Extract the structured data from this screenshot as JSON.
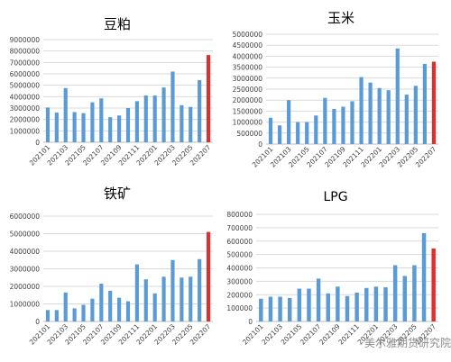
{
  "watermark": "美尔雅期货研究院",
  "colors": {
    "normal_bar": "#5B9BD5",
    "highlight_bar": "#E52D2D",
    "grid": "#d9d9d9",
    "axis": "#bfbfbf",
    "text": "#404040"
  },
  "chart_data": [
    {
      "type": "bar",
      "title": "豆粕",
      "categories": [
        "202101",
        "202102",
        "202103",
        "202104",
        "202105",
        "202106",
        "202107",
        "202108",
        "202109",
        "202110",
        "202111",
        "202112",
        "202201",
        "202202",
        "202203",
        "202204",
        "202205",
        "202206",
        "202207"
      ],
      "x_tick_labels": [
        "202101",
        "202103",
        "202105",
        "202107",
        "202109",
        "202111",
        "202201",
        "202203",
        "202205",
        "202207"
      ],
      "values": [
        3050000,
        2600000,
        4750000,
        2650000,
        2550000,
        3500000,
        3850000,
        2200000,
        2350000,
        3000000,
        3600000,
        4100000,
        4100000,
        4800000,
        6200000,
        3250000,
        3100000,
        5450000,
        7650000
      ],
      "highlight_index": 18,
      "ylim": [
        0,
        9000000
      ],
      "yticks": [
        0,
        1000000,
        2000000,
        3000000,
        4000000,
        5000000,
        6000000,
        7000000,
        8000000,
        9000000
      ],
      "ytick_labels": [
        "0",
        "1000000",
        "2000000",
        "3000000",
        "4000000",
        "5000000",
        "6000000",
        "7000000",
        "8000000",
        "9000000"
      ],
      "grid": true
    },
    {
      "type": "bar",
      "title": "玉米",
      "categories": [
        "202101",
        "202102",
        "202103",
        "202104",
        "202105",
        "202106",
        "202107",
        "202108",
        "202109",
        "202110",
        "202111",
        "202112",
        "202201",
        "202202",
        "202203",
        "202204",
        "202205",
        "202206",
        "202207"
      ],
      "x_tick_labels": [
        "202101",
        "202103",
        "202105",
        "202107",
        "202109",
        "202111",
        "202201",
        "202203",
        "202205",
        "202207"
      ],
      "values": [
        1200000,
        850000,
        2000000,
        1000000,
        1000000,
        1300000,
        2100000,
        1600000,
        1700000,
        1950000,
        3050000,
        2800000,
        2550000,
        2450000,
        4350000,
        2250000,
        2650000,
        3650000,
        3750000
      ],
      "highlight_index": 18,
      "ylim": [
        0,
        5000000
      ],
      "yticks": [
        0,
        500000,
        1000000,
        1500000,
        2000000,
        2500000,
        3000000,
        3500000,
        4000000,
        4500000,
        5000000
      ],
      "ytick_labels": [
        "0",
        "500000",
        "1000000",
        "1500000",
        "2000000",
        "2500000",
        "3000000",
        "3500000",
        "4000000",
        "4500000",
        "5000000"
      ],
      "grid": true
    },
    {
      "type": "bar",
      "title": "铁矿",
      "categories": [
        "202101",
        "202102",
        "202103",
        "202104",
        "202105",
        "202106",
        "202107",
        "202108",
        "202109",
        "202110",
        "202111",
        "202112",
        "202201",
        "202202",
        "202203",
        "202204",
        "202205",
        "202206",
        "202207"
      ],
      "x_tick_labels": [
        "202101",
        "202103",
        "202105",
        "202107",
        "202109",
        "202111",
        "202201",
        "202203",
        "202205",
        "202207"
      ],
      "values": [
        650000,
        650000,
        1650000,
        750000,
        950000,
        1300000,
        2150000,
        1750000,
        1350000,
        1150000,
        3250000,
        2400000,
        1600000,
        2550000,
        3500000,
        2500000,
        2550000,
        3550000,
        5100000
      ],
      "highlight_index": 18,
      "ylim": [
        0,
        6000000
      ],
      "yticks": [
        0,
        1000000,
        2000000,
        3000000,
        4000000,
        5000000,
        6000000
      ],
      "ytick_labels": [
        "0",
        "1000000",
        "2000000",
        "3000000",
        "4000000",
        "5000000",
        "6000000"
      ],
      "grid": true
    },
    {
      "type": "bar",
      "title": "LPG",
      "categories": [
        "202101",
        "202102",
        "202103",
        "202104",
        "202105",
        "202106",
        "202107",
        "202108",
        "202109",
        "202110",
        "202111",
        "202112",
        "202201",
        "202202",
        "202203",
        "202204",
        "202205",
        "202206",
        "202207"
      ],
      "x_tick_labels": [
        "202101",
        "202103",
        "202105",
        "202107",
        "202109",
        "202111",
        "202201",
        "202203",
        "202205",
        "202207"
      ],
      "values": [
        170000,
        185000,
        185000,
        175000,
        245000,
        245000,
        320000,
        210000,
        260000,
        190000,
        215000,
        250000,
        260000,
        255000,
        420000,
        340000,
        420000,
        660000,
        545000
      ],
      "highlight_index": 18,
      "ylim": [
        0,
        800000
      ],
      "yticks": [
        0,
        100000,
        200000,
        300000,
        400000,
        500000,
        600000,
        700000,
        800000
      ],
      "ytick_labels": [
        "0",
        "100000",
        "200000",
        "300000",
        "400000",
        "500000",
        "600000",
        "700000",
        "800000"
      ],
      "grid": true
    }
  ]
}
